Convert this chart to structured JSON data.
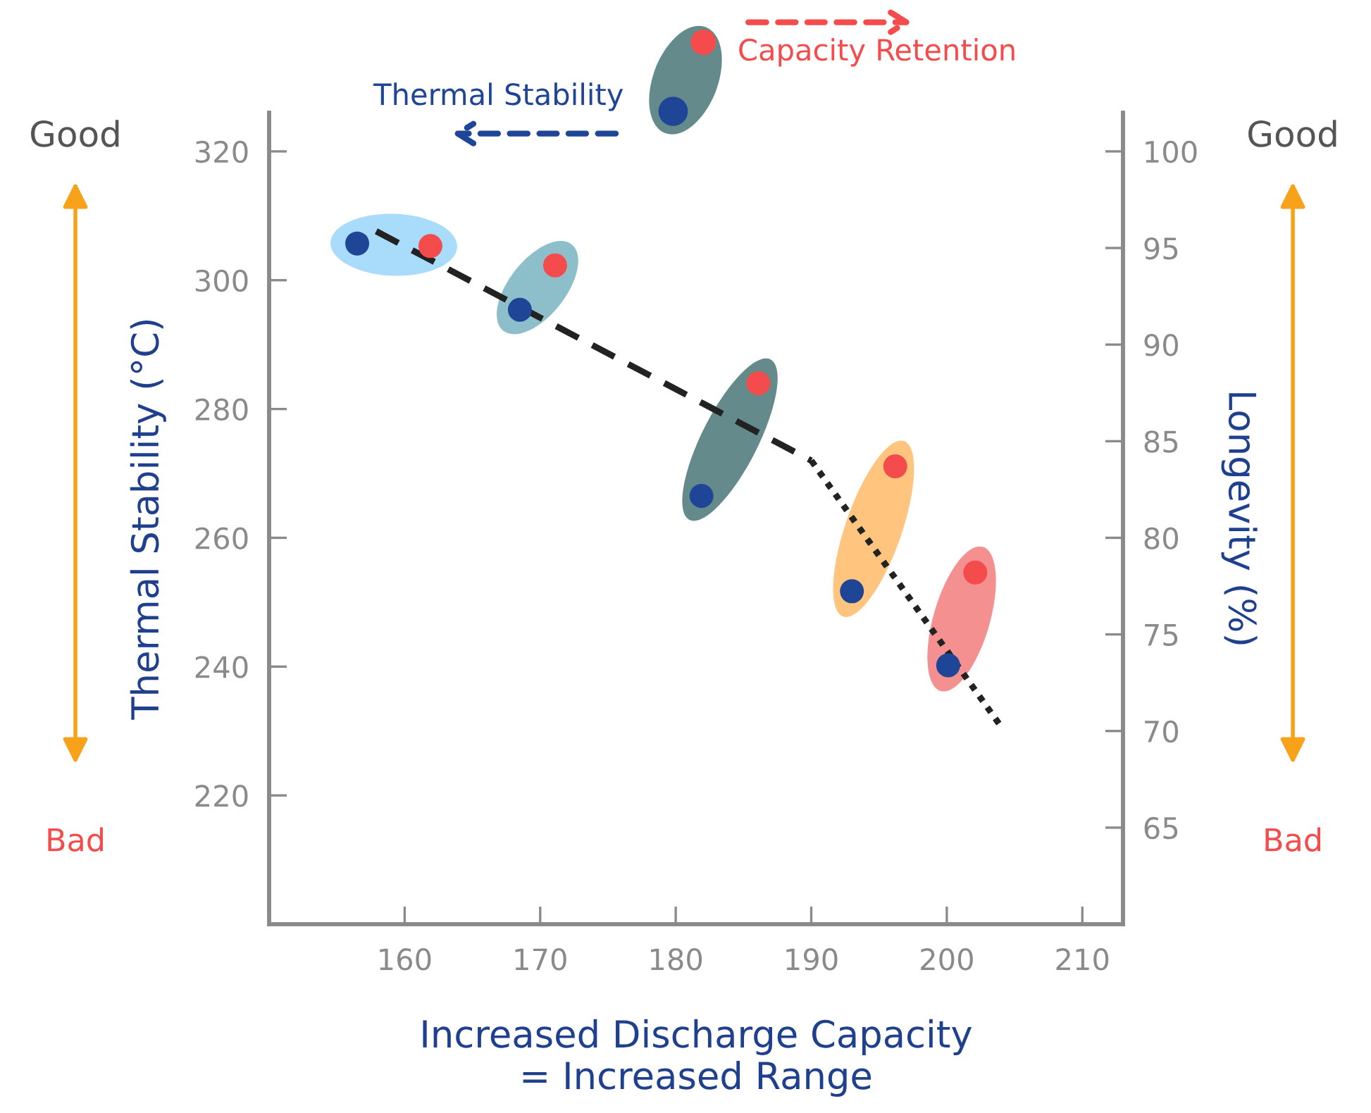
{
  "chart_data": {
    "type": "scatter",
    "xlabel": "Increased Discharge Capacity\n= Increased Range",
    "ylabel": "Thermal Stability (°C)",
    "y2label": "Longevity (%)",
    "xlim": [
      150,
      213
    ],
    "xticks": [
      160,
      170,
      180,
      190,
      200,
      210
    ],
    "ylim": [
      200,
      326
    ],
    "yticks": [
      220,
      240,
      260,
      280,
      300,
      320
    ],
    "y2lim": [
      60,
      102
    ],
    "y2ticks": [
      65,
      70,
      75,
      80,
      85,
      90,
      95,
      100
    ],
    "legend": "top",
    "marker": "circle",
    "grid": false,
    "series": [
      {
        "name": "Thermal Stability",
        "color": "#1f4596",
        "axis": "y",
        "x": [
          156.5,
          168.5,
          181.9,
          193.0,
          200.1
        ],
        "values": [
          305.7,
          295.4,
          266.5,
          251.7,
          240.2
        ]
      },
      {
        "name": "Capacity Retention",
        "color": "#f44c4c",
        "axis": "y2",
        "x": [
          161.9,
          171.1,
          186.1,
          196.2,
          202.1
        ],
        "values": [
          95.1,
          94.1,
          88.0,
          83.7,
          78.2
        ]
      },
      {
        "type": "line",
        "color": "#222222",
        "axis": "y",
        "line_style": "dashed",
        "marker": "none",
        "x": [
          157.9,
          190.0
        ],
        "values": [
          307.6,
          272.0
        ]
      },
      {
        "type": "line",
        "color": "#222222",
        "axis": "y",
        "line_style": "dotted",
        "marker": "none",
        "x": [
          190.0,
          204.0
        ],
        "values": [
          272.0,
          230.7
        ]
      }
    ],
    "annotations": [
      "Good",
      "Bad",
      "Good",
      "Bad"
    ]
  }
}
